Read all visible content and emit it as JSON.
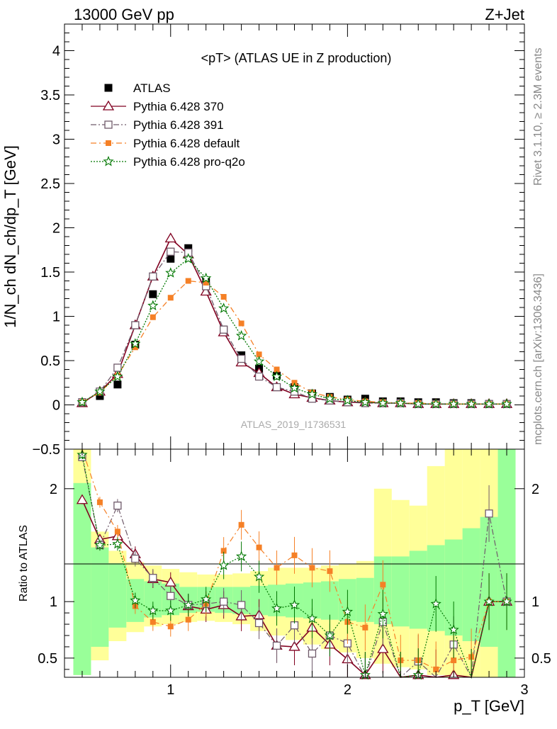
{
  "header": {
    "left": "13000 GeV pp",
    "right": "Z+Jet",
    "side_top": "Rivet 3.1.10, ≥ 2.3M events",
    "side_bottom": "mcplots.cern.ch [arXiv:1306.3436]"
  },
  "chart_data": [
    {
      "type": "line",
      "title": "<pT> (ATLAS UE in Z production)",
      "ylabel": "1/N_ch dN_ch/dp_T [GeV]",
      "xlabel": "",
      "watermark": "ATLAS_2019_I1736531",
      "xlim": [
        0.4,
        3.0
      ],
      "ylim": [
        -0.5,
        4.3
      ],
      "yticks": [
        "−0.5",
        "0",
        "0.5",
        "1",
        "1.5",
        "2",
        "2.5",
        "3",
        "3.5",
        "4"
      ],
      "legend_placement": "top-left",
      "x": [
        0.5,
        0.6,
        0.7,
        0.8,
        0.9,
        1.0,
        1.1,
        1.2,
        1.3,
        1.4,
        1.5,
        1.6,
        1.7,
        1.8,
        1.9,
        2.0,
        2.1,
        2.2,
        2.3,
        2.4,
        2.5,
        2.6,
        2.7,
        2.8,
        2.9
      ],
      "series": [
        {
          "name": "ATLAS",
          "color": "#000000",
          "values": [
            0.02,
            0.1,
            0.23,
            0.68,
            1.25,
            1.65,
            1.77,
            1.4,
            0.85,
            0.56,
            0.41,
            0.33,
            0.2,
            0.13,
            0.09,
            0.06,
            0.07,
            0.04,
            0.04,
            0.03,
            0.03,
            0.02,
            0.02,
            0.01,
            0.01
          ]
        },
        {
          "name": "Pythia 6.428 370",
          "color": "#800020",
          "values": [
            0.02,
            0.15,
            0.35,
            0.9,
            1.45,
            1.88,
            1.7,
            1.28,
            0.82,
            0.48,
            0.36,
            0.2,
            0.12,
            0.08,
            0.05,
            0.03,
            0.03,
            0.02,
            0.02,
            0.01,
            0.01,
            0.01,
            0.01,
            0.01,
            0.01
          ]
        },
        {
          "name": "Pythia 6.428 391",
          "color": "#6f5a6a",
          "values": [
            0.03,
            0.15,
            0.42,
            0.9,
            1.45,
            1.73,
            1.72,
            1.34,
            0.85,
            0.52,
            0.32,
            0.2,
            0.15,
            0.07,
            0.05,
            0.03,
            0.02,
            0.02,
            0.02,
            0.01,
            0.01,
            0.01,
            0.01,
            0.01,
            0.01
          ]
        },
        {
          "name": "Pythia 6.428 default",
          "color": "#f58026",
          "values": [
            0.03,
            0.14,
            0.33,
            0.65,
            0.99,
            1.21,
            1.4,
            1.38,
            1.22,
            0.92,
            0.57,
            0.4,
            0.25,
            0.14,
            0.09,
            0.06,
            0.04,
            0.03,
            0.02,
            0.02,
            0.01,
            0.01,
            0.01,
            0.01,
            0.01
          ]
        },
        {
          "name": "Pythia 6.428 pro-q2o",
          "color": "#007700",
          "values": [
            0.03,
            0.15,
            0.32,
            0.69,
            1.12,
            1.49,
            1.65,
            1.43,
            1.09,
            0.78,
            0.49,
            0.32,
            0.19,
            0.12,
            0.07,
            0.05,
            0.03,
            0.02,
            0.02,
            0.01,
            0.01,
            0.01,
            0.01,
            0.01,
            0.01
          ]
        }
      ]
    },
    {
      "type": "line",
      "title": "",
      "ylabel": "Ratio to ATLAS",
      "xlabel": "p_T [GeV]",
      "xlim": [
        0.4,
        3.0
      ],
      "ylim": [
        0.33,
        2.35
      ],
      "xticks": [
        "1",
        "2",
        "3"
      ],
      "yticks": [
        "0.5",
        "1",
        "2"
      ],
      "x": [
        0.5,
        0.6,
        0.7,
        0.8,
        0.9,
        1.0,
        1.1,
        1.2,
        1.3,
        1.4,
        1.5,
        1.6,
        1.7,
        1.8,
        1.9,
        2.0,
        2.1,
        2.2,
        2.3,
        2.4,
        2.5,
        2.6,
        2.7,
        2.8,
        2.9
      ],
      "band_inner": [
        [
          0.35,
          2.05
        ],
        [
          0.6,
          1.48
        ],
        [
          0.77,
          1.34
        ],
        [
          0.82,
          1.2
        ],
        [
          0.86,
          1.18
        ],
        [
          0.88,
          1.16
        ],
        [
          0.9,
          1.13
        ],
        [
          0.91,
          1.13
        ],
        [
          0.9,
          1.13
        ],
        [
          0.89,
          1.13
        ],
        [
          0.88,
          1.14
        ],
        [
          0.87,
          1.15
        ],
        [
          0.86,
          1.16
        ],
        [
          0.85,
          1.17
        ],
        [
          0.84,
          1.18
        ],
        [
          0.83,
          1.2
        ],
        [
          0.82,
          1.21
        ],
        [
          0.8,
          1.4
        ],
        [
          0.78,
          1.4
        ],
        [
          0.76,
          1.45
        ],
        [
          0.74,
          1.5
        ],
        [
          0.7,
          1.55
        ],
        [
          0.65,
          1.65
        ],
        [
          0.6,
          1.75
        ],
        [
          0.3,
          2.4
        ]
      ],
      "band_outer": [
        [
          0.35,
          2.35
        ],
        [
          0.48,
          1.62
        ],
        [
          0.65,
          1.45
        ],
        [
          0.73,
          1.35
        ],
        [
          0.78,
          1.32
        ],
        [
          0.8,
          1.29
        ],
        [
          0.82,
          1.26
        ],
        [
          0.83,
          1.24
        ],
        [
          0.82,
          1.24
        ],
        [
          0.8,
          1.25
        ],
        [
          0.74,
          1.27
        ],
        [
          0.7,
          1.3
        ],
        [
          0.66,
          1.3
        ],
        [
          0.62,
          1.3
        ],
        [
          0.58,
          1.32
        ],
        [
          0.55,
          1.33
        ],
        [
          0.5,
          1.36
        ],
        [
          0.45,
          2.0
        ],
        [
          0.42,
          1.9
        ],
        [
          0.4,
          1.85
        ],
        [
          0.35,
          2.2
        ],
        [
          0.33,
          2.4
        ],
        [
          0.33,
          2.4
        ],
        [
          0.33,
          2.4
        ],
        [
          0.3,
          2.4
        ]
      ],
      "series": [
        {
          "name": "Pythia 6.428 370",
          "color": "#800020",
          "values": [
            1.9,
            1.55,
            1.58,
            1.42,
            1.2,
            1.17,
            0.96,
            0.93,
            0.97,
            0.87,
            0.88,
            0.61,
            0.6,
            0.77,
            0.62,
            0.49,
            0.35,
            0.58,
            0.3,
            0.35,
            0.3,
            0.35,
            0.3,
            1.0,
            1.0
          ]
        },
        {
          "name": "Pythia 6.428 391",
          "color": "#6f5a6a",
          "values": [
            2.28,
            1.5,
            1.85,
            1.38,
            1.21,
            1.05,
            0.97,
            0.98,
            1.0,
            0.97,
            0.81,
            0.61,
            0.79,
            0.54,
            0.7,
            0.63,
            0.3,
            0.82,
            0.3,
            0.47,
            0.3,
            0.62,
            0.3,
            1.78,
            1.0
          ]
        },
        {
          "name": "Pythia 6.428 default",
          "color": "#f58026",
          "values": [
            2.35,
            1.88,
            1.62,
            0.96,
            0.82,
            0.78,
            0.84,
            0.98,
            1.45,
            1.68,
            1.48,
            1.3,
            1.41,
            1.3,
            1.27,
            0.82,
            0.77,
            1.15,
            0.48,
            0.48,
            0.4,
            0.48,
            0.51,
            1.0,
            1.0
          ]
        },
        {
          "name": "Pythia 6.428 pro-q2o",
          "color": "#007700",
          "values": [
            2.3,
            1.5,
            1.51,
            1.01,
            0.92,
            0.92,
            0.97,
            1.02,
            1.32,
            1.4,
            1.22,
            0.94,
            0.97,
            0.85,
            0.7,
            0.91,
            0.35,
            0.89,
            0.3,
            0.35,
            0.98,
            0.75,
            0.3,
            1.0,
            1.0
          ]
        }
      ]
    }
  ]
}
